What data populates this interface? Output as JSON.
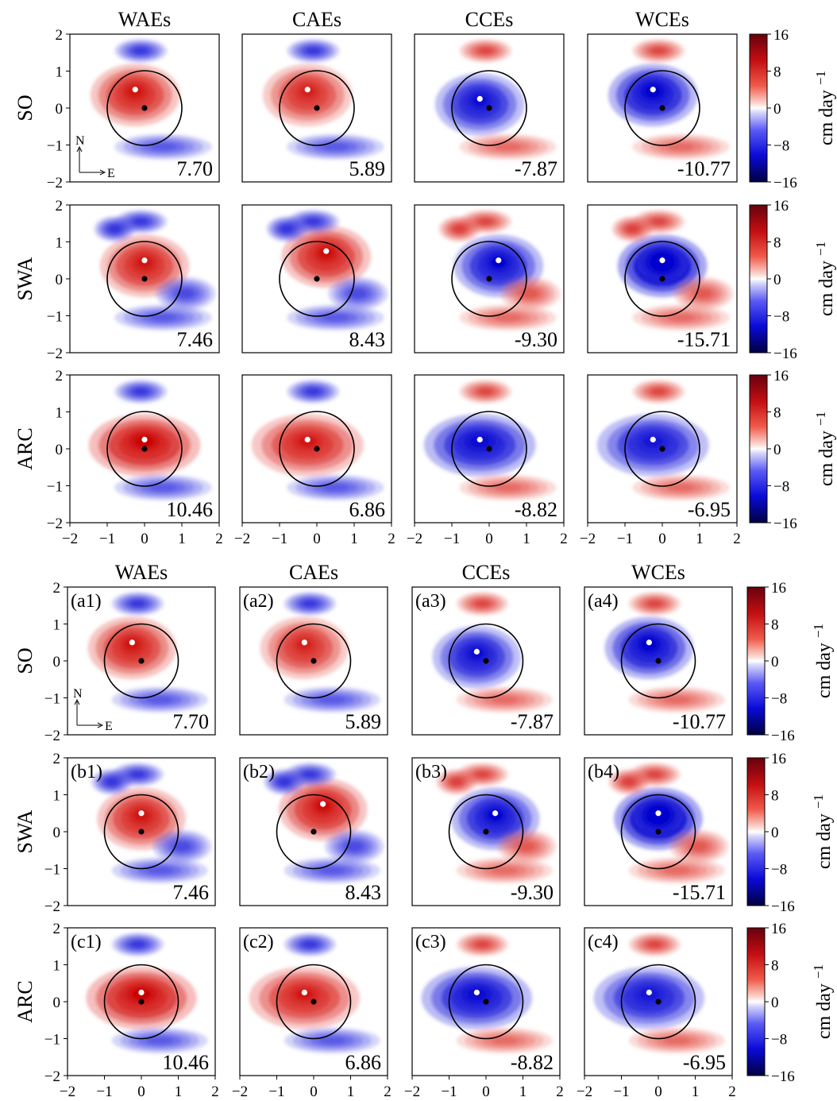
{
  "figure": {
    "columns": [
      "WAEs",
      "CAEs",
      "CCEs",
      "WCEs"
    ],
    "rows": [
      "SO",
      "SWA",
      "ARC"
    ],
    "values": [
      [
        "7.70",
        "5.89",
        "-7.87",
        "-10.77"
      ],
      [
        "7.46",
        "8.43",
        "-9.30",
        "-15.71"
      ],
      [
        "10.46",
        "6.86",
        "-8.82",
        "-6.95"
      ]
    ],
    "panel_labels": [
      [
        "(a1)",
        "(a2)",
        "(a3)",
        "(a4)"
      ],
      [
        "(b1)",
        "(b2)",
        "(b3)",
        "(b4)"
      ],
      [
        "(c1)",
        "(c2)",
        "(c3)",
        "(c4)"
      ]
    ],
    "x_ticks": [
      "−2",
      "−1",
      "0",
      "1",
      "2"
    ],
    "y_ticks": [
      "2",
      "1",
      "0",
      "−1",
      "−2"
    ],
    "compass": {
      "north": "N",
      "east": "E"
    },
    "colorbar": {
      "ticks": [
        "16",
        "8",
        "0",
        "−8",
        "−16"
      ],
      "unit": "cm day",
      "unit_exp": "−1",
      "colors": {
        "max": "#67000d",
        "pos": "#e21b1b",
        "zero": "#ffffff",
        "neg": "#1a1aff",
        "min": "#000040"
      }
    },
    "copies": 2
  },
  "chart_data": {
    "type": "heatmap",
    "title": "",
    "xlabel": "",
    "ylabel": "",
    "xlim": [
      -2,
      2
    ],
    "ylim": [
      -2,
      2
    ],
    "colorbar_range": [
      -16,
      16
    ],
    "colorbar_label": "cm day^-1",
    "columns": [
      "WAEs",
      "CAEs",
      "CCEs",
      "WCEs"
    ],
    "rows": [
      "SO",
      "SWA",
      "ARC"
    ],
    "panel_values": [
      [
        7.7,
        5.89,
        -7.87,
        -10.77
      ],
      [
        7.46,
        8.43,
        -9.3,
        -15.71
      ],
      [
        10.46,
        6.86,
        -8.82,
        -6.95
      ]
    ],
    "eddy_center": [
      0,
      0
    ],
    "eddy_radius": 1,
    "extremum_points": [
      [
        [
          -0.25,
          0.5
        ],
        [
          -0.25,
          0.5
        ],
        [
          -0.25,
          0.25
        ],
        [
          -0.25,
          0.5
        ]
      ],
      [
        [
          0,
          0.5
        ],
        [
          0.25,
          0.75
        ],
        [
          0.25,
          0.5
        ],
        [
          0,
          0.5
        ]
      ],
      [
        [
          0,
          0.25
        ],
        [
          -0.25,
          0.25
        ],
        [
          -0.25,
          0.25
        ],
        [
          -0.25,
          0.25
        ]
      ]
    ]
  }
}
